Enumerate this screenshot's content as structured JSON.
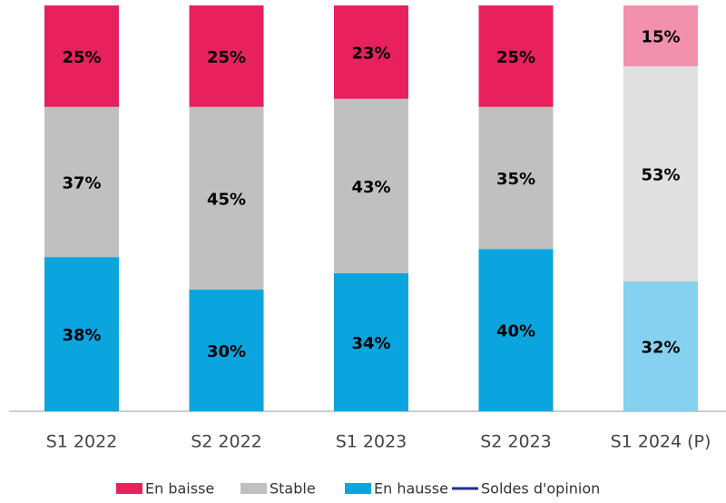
{
  "chart_data": {
    "type": "stacked_bar",
    "categories": [
      "S1 2022",
      "S2 2022",
      "S1 2023",
      "S2 2023",
      "S1 2024 (P)"
    ],
    "ylim": [
      0,
      100
    ],
    "series": [
      {
        "name": "En baisse",
        "color": "#e8215e",
        "colors": [
          "#e8215e",
          "#e8215e",
          "#e8215e",
          "#e8215e",
          "#f291ae"
        ],
        "values": [
          25,
          25,
          23,
          25,
          15
        ],
        "value_labels": [
          "25%",
          "25%",
          "23%",
          "25%",
          "15%"
        ]
      },
      {
        "name": "Stable",
        "color": "#c0c0c0",
        "colors": [
          "#c0c0c0",
          "#c0c0c0",
          "#c0c0c0",
          "#c0c0c0",
          "#e0e0e0"
        ],
        "values": [
          37,
          45,
          43,
          35,
          53
        ],
        "value_labels": [
          "37%",
          "45%",
          "43%",
          "35%",
          "53%"
        ]
      },
      {
        "name": "En hausse",
        "color": "#0aa5df",
        "colors": [
          "#0aa5df",
          "#0aa5df",
          "#0aa5df",
          "#0aa5df",
          "#86d1ef"
        ],
        "values": [
          38,
          30,
          34,
          40,
          32
        ],
        "value_labels": [
          "38%",
          "30%",
          "34%",
          "40%",
          "32%"
        ]
      },
      {
        "name": "Soldes d'opinion",
        "color": "#1f2f8f",
        "legend_type": "line",
        "values": [
          null,
          null,
          null,
          null,
          null
        ]
      }
    ],
    "stack_order": [
      "En hausse",
      "Stable",
      "En baisse"
    ]
  }
}
